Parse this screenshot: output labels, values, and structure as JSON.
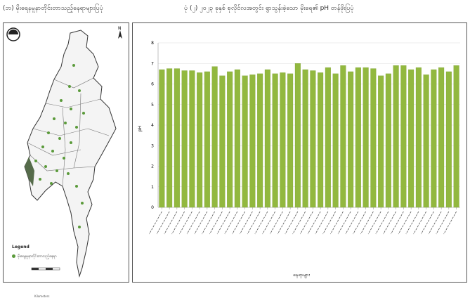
{
  "titles": {
    "left": "(ဘ) မိုးရေနမူနာတိုင်းတာသည့်နေရာများပြပုံ",
    "right": "ပုံ (၂) ၂၀၂၃ ခုနှစ် စုလိုင်လအတွင်း ရွာသွန်းခဲ့သော မိုးရေ၏ pH တန်ဖိုးပြပုံ"
  },
  "map": {
    "legend_title": "Legend",
    "legend_item": "မိုးရေနမူနာတိုင်းတာသည့်နေရာ",
    "scale_label": "Kilometers",
    "marker_color": "#5a9a3a"
  },
  "colors": {
    "bar": "#92b83f",
    "bar_edge": "#7a9e30",
    "grid": "#dddddd"
  },
  "chart_data": {
    "type": "bar",
    "xlabel": "နေရာများ",
    "ylabel": "pH",
    "ylim": [
      0,
      8
    ],
    "yticks": [
      0,
      1,
      2,
      3,
      4,
      5,
      6,
      7,
      8
    ],
    "values": [
      6.7,
      6.75,
      6.75,
      6.65,
      6.65,
      6.55,
      6.6,
      6.85,
      6.4,
      6.6,
      6.7,
      6.4,
      6.45,
      6.5,
      6.7,
      6.5,
      6.55,
      6.5,
      7.0,
      6.7,
      6.65,
      6.55,
      6.8,
      6.5,
      6.9,
      6.6,
      6.8,
      6.8,
      6.75,
      6.4,
      6.5,
      6.9,
      6.9,
      6.7,
      6.8,
      6.45,
      6.7,
      6.8,
      6.6,
      6.9
    ]
  }
}
